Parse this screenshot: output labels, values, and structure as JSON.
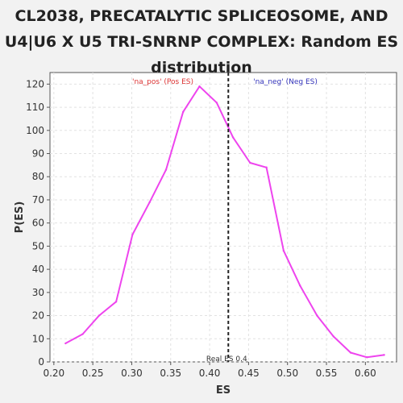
{
  "chart_data": {
    "type": "line",
    "title_lines": [
      "CL2038, PRECATALYTIC SPLICEOSOME, AND",
      "U4|U6 X U5 TRI-SNRNP COMPLEX: Random ES",
      "distribution"
    ],
    "xlabel": "ES",
    "ylabel": "P(ES)",
    "xlim": [
      0.195,
      0.64
    ],
    "ylim": [
      0,
      125
    ],
    "x_ticks": [
      0.2,
      0.25,
      0.3,
      0.35,
      0.4,
      0.45,
      0.5,
      0.55,
      0.6
    ],
    "x_tick_labels": [
      "0.20",
      "0.25",
      "0.30",
      "0.35",
      "0.40",
      "0.45",
      "0.50",
      "0.55",
      "0.60"
    ],
    "y_ticks": [
      0,
      10,
      20,
      30,
      40,
      50,
      60,
      70,
      80,
      90,
      100,
      110,
      120
    ],
    "y_tick_labels": [
      "0",
      "10",
      "20",
      "30",
      "40",
      "50",
      "60",
      "70",
      "80",
      "90",
      "100",
      "110",
      "120"
    ],
    "grid": true,
    "series": [
      {
        "color": "#ee44ee",
        "x": [
          0.215,
          0.237,
          0.258,
          0.28,
          0.301,
          0.323,
          0.344,
          0.366,
          0.387,
          0.409,
          0.43,
          0.452,
          0.473,
          0.495,
          0.516,
          0.538,
          0.559,
          0.581,
          0.602,
          0.624
        ],
        "y": [
          8,
          12,
          20,
          26,
          55,
          69,
          83,
          108,
          119,
          112,
          97,
          86,
          84,
          48,
          33,
          20,
          11,
          4,
          2,
          3
        ]
      }
    ],
    "real_es": {
      "value": 0.424,
      "label": "Real ES 0.4"
    },
    "annotations": [
      {
        "text": "'na_pos' (Pos ES)",
        "color": "#dd3333"
      },
      {
        "text": "'na_neg' (Neg ES)",
        "color": "#3333bb"
      }
    ]
  }
}
